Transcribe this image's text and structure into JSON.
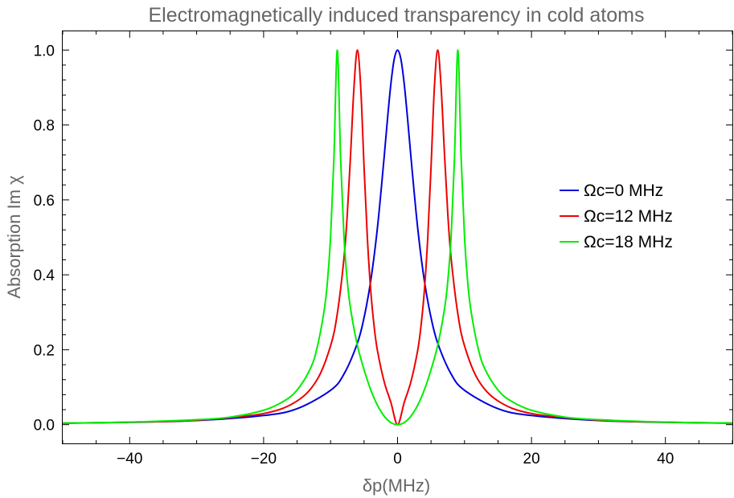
{
  "chart_data": {
    "type": "line",
    "title": "Electromagnetically induced transparency in cold atoms",
    "xlabel": "δp(MHz)",
    "ylabel": "Absorption Im χ",
    "xlim": [
      -50,
      50
    ],
    "ylim": [
      -0.05,
      1.05
    ],
    "x_ticks": [
      -40,
      -20,
      0,
      20,
      40
    ],
    "x_tick_labels": [
      "−40",
      "−20",
      "0",
      "20",
      "40"
    ],
    "y_ticks": [
      0.0,
      0.2,
      0.4,
      0.6,
      0.8,
      1.0
    ],
    "y_tick_labels": [
      "0.0",
      "0.2",
      "0.4",
      "0.6",
      "0.8",
      "1.0"
    ],
    "grid": false,
    "legend_position": "right",
    "series": [
      {
        "name": "Ωc=0 MHz",
        "color": "#0000dd",
        "x": [
          -50,
          -40,
          -30,
          -20,
          -15,
          -10,
          -8,
          -6,
          -5,
          -4,
          -3,
          -2,
          -1.5,
          -1,
          -0.5,
          0,
          0.5,
          1,
          1.5,
          2,
          3,
          4,
          5,
          6,
          8,
          10,
          15,
          20,
          30,
          40,
          50
        ],
        "y": [
          0.004,
          0.0062,
          0.011,
          0.0244,
          0.0426,
          0.0917,
          0.1351,
          0.2174,
          0.2857,
          0.3846,
          0.5263,
          0.7143,
          0.8163,
          0.9091,
          0.9756,
          1.0,
          0.9756,
          0.9091,
          0.8163,
          0.7143,
          0.5263,
          0.3846,
          0.2857,
          0.2174,
          0.1351,
          0.0917,
          0.0426,
          0.0244,
          0.011,
          0.0062,
          0.004
        ]
      },
      {
        "name": "Ωc=12 MHz",
        "color": "#ee0000",
        "x": [
          -50,
          -40,
          -30,
          -20,
          -15,
          -12,
          -10,
          -9,
          -8,
          -7.5,
          -7,
          -6.5,
          -6,
          -5.5,
          -5,
          -4.5,
          -4,
          -3.5,
          -3,
          -2,
          -1,
          0,
          1,
          2,
          3,
          3.5,
          4,
          4.5,
          5,
          5.5,
          6,
          6.5,
          7,
          7.5,
          8,
          9,
          10,
          12,
          15,
          20,
          30,
          40,
          50
        ],
        "y": [
          0.0041,
          0.0065,
          0.012,
          0.0297,
          0.0633,
          0.1205,
          0.2104,
          0.296,
          0.4444,
          0.5633,
          0.7258,
          0.9026,
          1.0,
          0.9005,
          0.6875,
          0.4959,
          0.3571,
          0.2628,
          0.1975,
          0.1149,
          0.0595,
          0.0,
          0.0595,
          0.1149,
          0.1975,
          0.2628,
          0.3571,
          0.4959,
          0.6875,
          0.9005,
          1.0,
          0.9026,
          0.7258,
          0.5633,
          0.4444,
          0.296,
          0.2104,
          0.1205,
          0.0633,
          0.0297,
          0.012,
          0.0065,
          0.0041
        ]
      },
      {
        "name": "Ωc=18 MHz",
        "color": "#00ee00",
        "x": [
          -50,
          -40,
          -30,
          -25,
          -20,
          -17,
          -15,
          -13,
          -12,
          -11,
          -10.5,
          -10,
          -9.5,
          -9,
          -8.5,
          -8,
          -7.5,
          -7,
          -6,
          -5,
          -4,
          -3,
          -2,
          -1,
          0,
          1,
          2,
          3,
          4,
          5,
          6,
          7,
          7.5,
          8,
          8.5,
          9,
          9.5,
          10,
          10.5,
          11,
          12,
          13,
          15,
          17,
          20,
          25,
          30,
          40,
          50
        ],
        "y": [
          0.0042,
          0.0068,
          0.0132,
          0.0201,
          0.0384,
          0.0625,
          0.0923,
          0.1503,
          0.2065,
          0.3003,
          0.3751,
          0.5009,
          0.7107,
          1.0,
          0.7097,
          0.5009,
          0.3825,
          0.3077,
          0.212,
          0.1467,
          0.0926,
          0.0516,
          0.0227,
          0.0056,
          0.0,
          0.0056,
          0.0227,
          0.0516,
          0.0926,
          0.1467,
          0.212,
          0.3077,
          0.3825,
          0.5009,
          0.7097,
          1.0,
          0.7107,
          0.5009,
          0.3751,
          0.3003,
          0.2065,
          0.1503,
          0.0923,
          0.0625,
          0.0384,
          0.0201,
          0.0132,
          0.0068,
          0.0042
        ]
      }
    ]
  }
}
